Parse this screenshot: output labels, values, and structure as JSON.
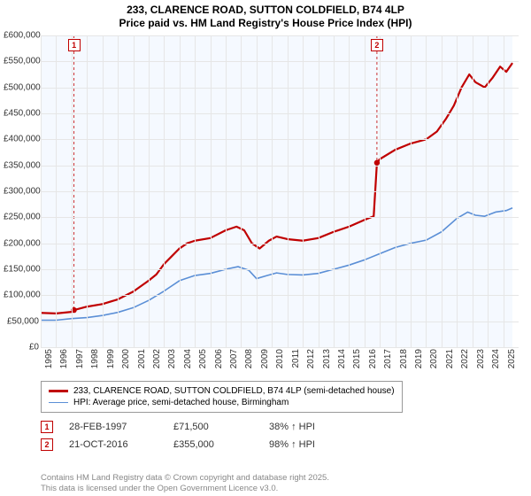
{
  "title1": "233, CLARENCE ROAD, SUTTON COLDFIELD, B74 4LP",
  "title2": "Price paid vs. HM Land Registry's House Price Index (HPI)",
  "chart": {
    "type": "line",
    "bg_color": "#f5f9ff",
    "grid_color": "#e6e6e6",
    "future_band_bg": "#ffffff",
    "x_years": [
      1995,
      1996,
      1997,
      1998,
      1999,
      2000,
      2001,
      2002,
      2003,
      2004,
      2005,
      2006,
      2007,
      2008,
      2009,
      2010,
      2011,
      2012,
      2013,
      2014,
      2015,
      2016,
      2017,
      2018,
      2019,
      2020,
      2021,
      2022,
      2023,
      2024,
      2025
    ],
    "x_min": 1995,
    "x_max": 2026,
    "y_ticks": [
      0,
      50000,
      100000,
      150000,
      200000,
      250000,
      300000,
      350000,
      400000,
      450000,
      500000,
      550000,
      600000
    ],
    "y_tick_labels": [
      "£0",
      "£50,000",
      "£100,000",
      "£150,000",
      "£200,000",
      "£250,000",
      "£300,000",
      "£350,000",
      "£400,000",
      "£450,000",
      "£500,000",
      "£550,000",
      "£600,000"
    ],
    "y_min": 0,
    "y_max": 600000,
    "axis_fontsize": 10,
    "title_fontsize": 12,
    "series": {
      "property": {
        "label": "233, CLARENCE ROAD, SUTTON COLDFIELD, B74 4LP (semi-detached house)",
        "color": "#c00000",
        "line_width": 2.2,
        "points": [
          [
            1995.0,
            66000
          ],
          [
            1996.0,
            65000
          ],
          [
            1997.0,
            68000
          ],
          [
            1997.16,
            71500
          ],
          [
            1998.0,
            78000
          ],
          [
            1999.0,
            83000
          ],
          [
            2000.0,
            92000
          ],
          [
            2001.0,
            107000
          ],
          [
            2002.0,
            128000
          ],
          [
            2002.5,
            140000
          ],
          [
            2003.0,
            160000
          ],
          [
            2003.5,
            175000
          ],
          [
            2004.0,
            190000
          ],
          [
            2004.5,
            200000
          ],
          [
            2005.0,
            205000
          ],
          [
            2006.0,
            210000
          ],
          [
            2007.0,
            225000
          ],
          [
            2007.7,
            232000
          ],
          [
            2008.2,
            225000
          ],
          [
            2008.7,
            200000
          ],
          [
            2009.2,
            190000
          ],
          [
            2009.8,
            205000
          ],
          [
            2010.3,
            213000
          ],
          [
            2011.0,
            208000
          ],
          [
            2012.0,
            205000
          ],
          [
            2013.0,
            210000
          ],
          [
            2014.0,
            222000
          ],
          [
            2015.0,
            232000
          ],
          [
            2016.0,
            245000
          ],
          [
            2016.6,
            252000
          ],
          [
            2016.81,
            355000
          ],
          [
            2017.0,
            362000
          ],
          [
            2018.0,
            380000
          ],
          [
            2019.0,
            392000
          ],
          [
            2020.0,
            400000
          ],
          [
            2020.7,
            415000
          ],
          [
            2021.3,
            440000
          ],
          [
            2021.8,
            465000
          ],
          [
            2022.3,
            500000
          ],
          [
            2022.8,
            525000
          ],
          [
            2023.2,
            510000
          ],
          [
            2023.8,
            500000
          ],
          [
            2024.3,
            518000
          ],
          [
            2024.8,
            540000
          ],
          [
            2025.2,
            530000
          ],
          [
            2025.6,
            547000
          ]
        ]
      },
      "hpi": {
        "label": "HPI: Average price, semi-detached house, Birmingham",
        "color": "#5b8fd6",
        "line_width": 1.6,
        "points": [
          [
            1995.0,
            52000
          ],
          [
            1996.0,
            52000
          ],
          [
            1997.0,
            55000
          ],
          [
            1998.0,
            57000
          ],
          [
            1999.0,
            61000
          ],
          [
            2000.0,
            67000
          ],
          [
            2001.0,
            76000
          ],
          [
            2002.0,
            90000
          ],
          [
            2003.0,
            108000
          ],
          [
            2004.0,
            128000
          ],
          [
            2005.0,
            138000
          ],
          [
            2006.0,
            142000
          ],
          [
            2007.0,
            150000
          ],
          [
            2007.8,
            155000
          ],
          [
            2008.5,
            148000
          ],
          [
            2009.0,
            132000
          ],
          [
            2009.7,
            138000
          ],
          [
            2010.3,
            143000
          ],
          [
            2011.0,
            140000
          ],
          [
            2012.0,
            139000
          ],
          [
            2013.0,
            142000
          ],
          [
            2014.0,
            150000
          ],
          [
            2015.0,
            158000
          ],
          [
            2016.0,
            168000
          ],
          [
            2017.0,
            180000
          ],
          [
            2018.0,
            192000
          ],
          [
            2019.0,
            200000
          ],
          [
            2020.0,
            206000
          ],
          [
            2021.0,
            222000
          ],
          [
            2022.0,
            248000
          ],
          [
            2022.7,
            260000
          ],
          [
            2023.2,
            254000
          ],
          [
            2023.8,
            252000
          ],
          [
            2024.5,
            260000
          ],
          [
            2025.2,
            263000
          ],
          [
            2025.6,
            268000
          ]
        ]
      }
    },
    "sale_markers": [
      {
        "n": "1",
        "year": 1997.16,
        "price": 71500
      },
      {
        "n": "2",
        "year": 2016.81,
        "price": 355000
      }
    ]
  },
  "legend": {
    "border_color": "#999999",
    "fontsize": 10
  },
  "sales": [
    {
      "n": "1",
      "date": "28-FEB-1997",
      "price": "£71,500",
      "hpi": "38% ↑ HPI"
    },
    {
      "n": "2",
      "date": "21-OCT-2016",
      "price": "£355,000",
      "hpi": "98% ↑ HPI"
    }
  ],
  "footnote1": "Contains HM Land Registry data © Crown copyright and database right 2025.",
  "footnote2": "This data is licensed under the Open Government Licence v3.0."
}
